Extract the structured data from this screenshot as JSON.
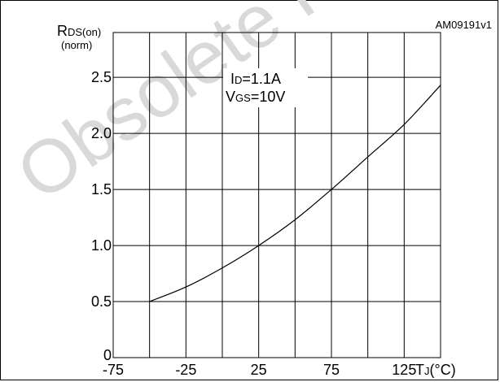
{
  "figure_code": "AM09191v1",
  "watermark": {
    "text": "Obsolete Product",
    "color": "#d9d9d9"
  },
  "chart_data": {
    "type": "line",
    "title": "",
    "ylabel_main": "R",
    "ylabel_sub": "DS(on)",
    "ylabel_unit": "(norm)",
    "xlabel_main": "T",
    "xlabel_sub": "J",
    "xlabel_unit": "(°C)",
    "xlim": [
      -75,
      150
    ],
    "ylim": [
      0,
      2.9
    ],
    "x_ticks": [
      -75,
      -25,
      25,
      75,
      125
    ],
    "x_tick_labels": [
      "-75",
      "-25",
      "25",
      "75",
      "125"
    ],
    "y_ticks": [
      0,
      0.5,
      1.0,
      1.5,
      2.0,
      2.5
    ],
    "y_tick_labels": [
      "0",
      "0.5",
      "1.0",
      "1.5",
      "2.0",
      "2.5"
    ],
    "x_grid": [
      -50,
      -25,
      0,
      25,
      50,
      75,
      100,
      125
    ],
    "y_grid": [
      0.5,
      1.0,
      1.5,
      2.0,
      2.5
    ],
    "annotation": {
      "line1_main": "I",
      "line1_sub": "D",
      "line1_rest": "=1.1A",
      "line2_main": "V",
      "line2_sub": "GS",
      "line2_rest": "=10V"
    },
    "series": [
      {
        "color": "#000000",
        "x": [
          -50,
          -25,
          0,
          25,
          50,
          75,
          100,
          125,
          150
        ],
        "y": [
          0.5,
          0.63,
          0.8,
          1.0,
          1.23,
          1.5,
          1.79,
          2.08,
          2.43
        ]
      }
    ]
  }
}
